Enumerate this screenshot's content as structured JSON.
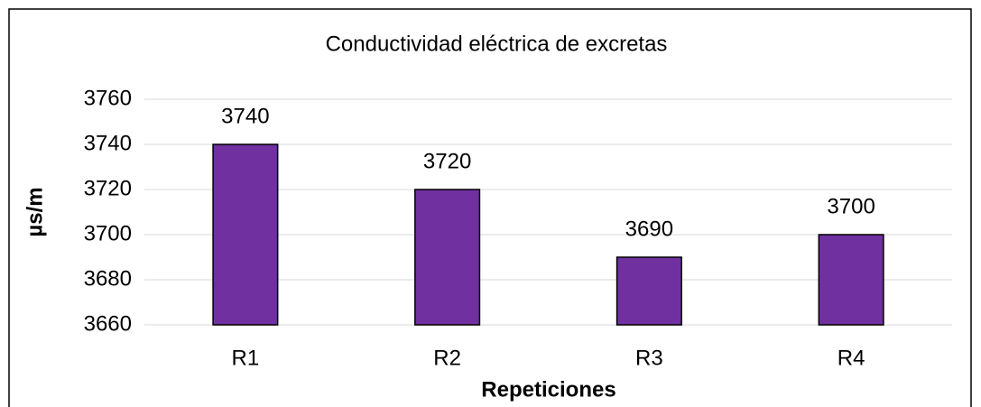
{
  "chart_data": {
    "type": "bar",
    "title": "Conductividad eléctrica de excretas",
    "y_label": "µs/m",
    "x_label": "Repeticiones",
    "categories": [
      "R1",
      "R2",
      "R3",
      "R4"
    ],
    "values": [
      3740,
      3720,
      3690,
      3700
    ],
    "color": "#7030a0",
    "ylim": [
      3660,
      3760
    ],
    "yticks": [
      3660,
      3680,
      3700,
      3720,
      3740,
      3760
    ],
    "grid": true
  }
}
